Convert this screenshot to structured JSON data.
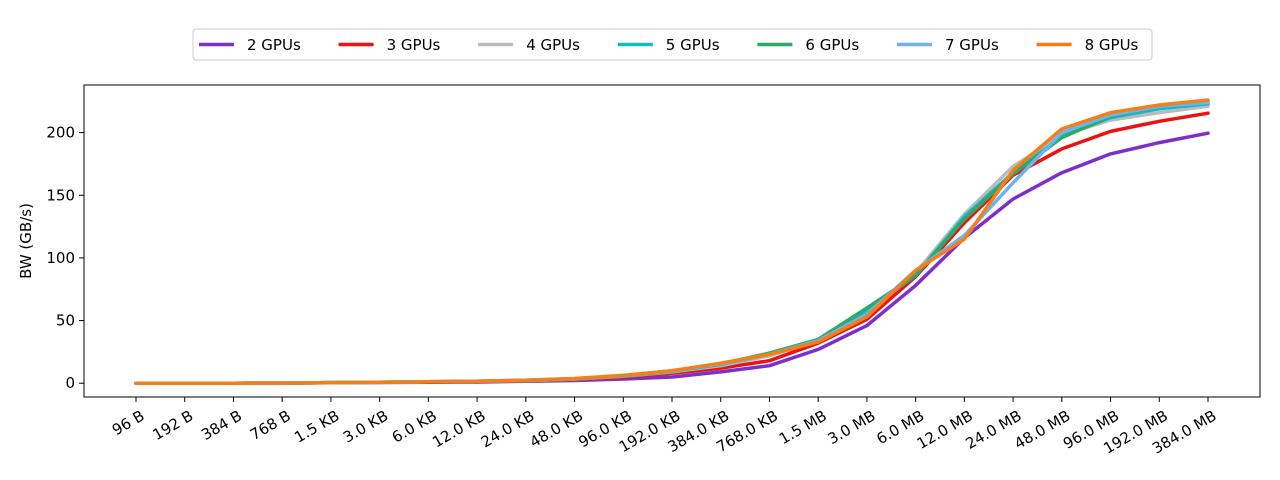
{
  "chart_data": {
    "type": "line",
    "title": "",
    "xlabel": "",
    "ylabel": "BW (GB/s)",
    "categories": [
      "96 B",
      "192 B",
      "384 B",
      "768 B",
      "1.5 KB",
      "3.0 KB",
      "6.0 KB",
      "12.0 KB",
      "24.0 KB",
      "48.0 KB",
      "96.0 KB",
      "192.0 KB",
      "384.0 KB",
      "768.0 KB",
      "1.5 MB",
      "3.0 MB",
      "6.0 MB",
      "12.0 MB",
      "24.0 MB",
      "48.0 MB",
      "96.0 MB",
      "192.0 MB",
      "384.0 MB"
    ],
    "ylim": [
      -11,
      238
    ],
    "yticks": [
      0,
      50,
      100,
      150,
      200
    ],
    "grid": false,
    "legend_position": "top-center",
    "series": [
      {
        "name": "2 GPUs",
        "color": "#7e2fcb",
        "values": [
          0,
          0,
          0,
          0.1,
          0.4,
          0.6,
          0.8,
          1.0,
          1.5,
          2.2,
          3.4,
          5.0,
          9.0,
          14.0,
          27.0,
          46.0,
          78.0,
          116.0,
          147.0,
          168.0,
          183.0,
          192.0,
          199.5
        ]
      },
      {
        "name": "3 GPUs",
        "color": "#ee1111",
        "values": [
          0,
          0,
          0,
          0.1,
          0.5,
          0.7,
          1.0,
          1.3,
          1.9,
          2.9,
          4.8,
          8.0,
          12.0,
          18.0,
          32.0,
          51.0,
          85.0,
          128.0,
          166.0,
          187.0,
          201.0,
          209.0,
          215.5
        ]
      },
      {
        "name": "4 GPUs",
        "color": "#bbbbbb",
        "values": [
          0,
          0,
          0,
          0.1,
          0.5,
          0.8,
          1.1,
          1.5,
          2.1,
          3.3,
          5.5,
          9.0,
          14.0,
          22.0,
          34.0,
          57.0,
          88.0,
          135.0,
          173.0,
          198.0,
          210.0,
          216.0,
          221.0
        ]
      },
      {
        "name": "5 GPUs",
        "color": "#11bbcc",
        "values": [
          0,
          0,
          0,
          0.1,
          0.5,
          0.8,
          1.1,
          1.5,
          2.2,
          3.4,
          5.7,
          9.5,
          15.0,
          23.0,
          35.0,
          58.0,
          86.0,
          133.0,
          168.0,
          197.0,
          212.0,
          219.0,
          223.0
        ]
      },
      {
        "name": "6 GPUs",
        "color": "#2eaa66",
        "values": [
          0,
          0,
          0,
          0.1,
          0.5,
          0.8,
          1.1,
          1.6,
          2.3,
          3.6,
          6.0,
          10.0,
          15.5,
          24.0,
          35.0,
          60.0,
          86.0,
          131.0,
          167.0,
          196.0,
          213.0,
          221.0,
          225.0
        ]
      },
      {
        "name": "7 GPUs",
        "color": "#6bb3f5",
        "values": [
          0,
          0,
          0,
          0.1,
          0.5,
          0.8,
          1.1,
          1.6,
          2.3,
          3.6,
          6.0,
          10.0,
          15.5,
          23.0,
          34.0,
          55.0,
          90.0,
          118.0,
          160.0,
          200.0,
          214.0,
          221.0,
          224.0
        ]
      },
      {
        "name": "8 GPUs",
        "color": "#f57f17",
        "values": [
          0,
          0,
          0,
          0.1,
          0.5,
          0.8,
          1.1,
          1.6,
          2.4,
          3.8,
          6.2,
          10.0,
          16.0,
          23.0,
          33.0,
          53.0,
          90.0,
          115.0,
          170.0,
          203.0,
          216.0,
          222.0,
          226.0
        ]
      }
    ]
  }
}
